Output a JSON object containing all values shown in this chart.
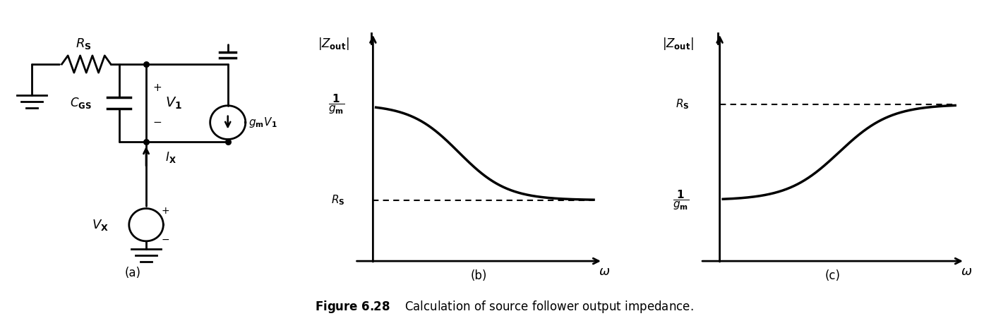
{
  "fig_width": 14.28,
  "fig_height": 4.48,
  "dpi": 100,
  "background_color": "#ffffff",
  "caption_fontsize": 12,
  "plot_b": {
    "high_val": 0.72,
    "low_val": 0.28,
    "sublabel": "(b)"
  },
  "plot_c": {
    "high_val": 0.72,
    "low_val": 0.28,
    "sublabel": "(c)"
  },
  "sublabel_a": "(a)",
  "line_color": "#000000",
  "line_width": 2.5,
  "dashed_color": "#000000"
}
